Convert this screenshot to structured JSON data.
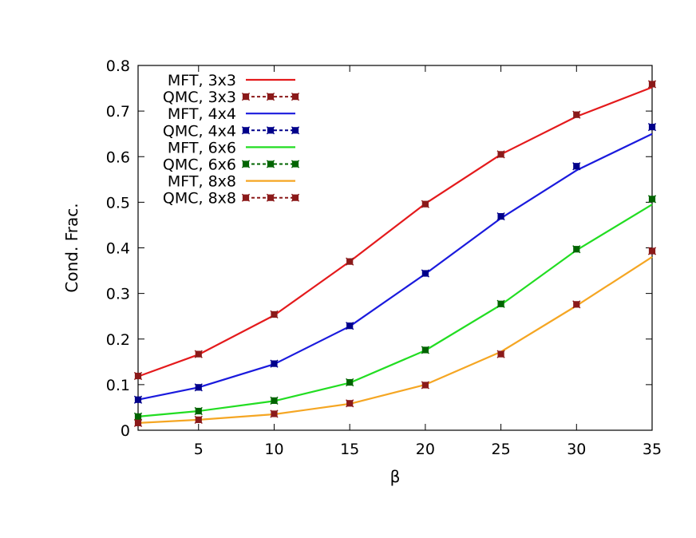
{
  "chart_data": {
    "type": "line",
    "title": "",
    "xlabel": "β",
    "ylabel": "Cond. Frac.",
    "xlim": [
      1,
      35
    ],
    "ylim": [
      0,
      0.8
    ],
    "xticks": [
      5,
      10,
      15,
      20,
      25,
      30,
      35
    ],
    "yticks": [
      0,
      0.1,
      0.2,
      0.3,
      0.4,
      0.5,
      0.6,
      0.7,
      0.8
    ],
    "ytick_labels": [
      "0",
      "0.1",
      "0.2",
      "0.3",
      "0.4",
      "0.5",
      "0.6",
      "0.7",
      "0.8"
    ],
    "grid": false,
    "legend_position": "top-left",
    "series": [
      {
        "name": "MFT, 3x3",
        "style": "line",
        "color": "#e41a1c",
        "x": [
          1,
          5,
          10,
          15,
          20,
          25,
          30,
          35
        ],
        "y": [
          0.118,
          0.166,
          0.252,
          0.37,
          0.497,
          0.605,
          0.688,
          0.752
        ]
      },
      {
        "name": "QMC, 3x3",
        "style": "dashed-markers",
        "color": "#8b1a1a",
        "x": [
          1,
          5,
          10,
          15,
          20,
          25,
          30,
          35
        ],
        "y": [
          0.119,
          0.167,
          0.254,
          0.37,
          0.496,
          0.605,
          0.692,
          0.759
        ]
      },
      {
        "name": "MFT, 4x4",
        "style": "line",
        "color": "#1a1add",
        "x": [
          1,
          5,
          10,
          15,
          20,
          25,
          30,
          35
        ],
        "y": [
          0.067,
          0.094,
          0.145,
          0.228,
          0.343,
          0.465,
          0.57,
          0.65
        ]
      },
      {
        "name": "QMC, 4x4",
        "style": "dashed-markers",
        "color": "#00008b",
        "x": [
          1,
          5,
          10,
          15,
          20,
          25,
          30,
          35
        ],
        "y": [
          0.067,
          0.094,
          0.146,
          0.229,
          0.344,
          0.469,
          0.579,
          0.665
        ]
      },
      {
        "name": "MFT, 6x6",
        "style": "line",
        "color": "#22dd22",
        "x": [
          1,
          5,
          10,
          15,
          20,
          25,
          30,
          35
        ],
        "y": [
          0.03,
          0.042,
          0.064,
          0.104,
          0.175,
          0.275,
          0.395,
          0.495
        ]
      },
      {
        "name": "QMC, 6x6",
        "style": "dashed-markers",
        "color": "#006400",
        "x": [
          1,
          5,
          10,
          15,
          20,
          25,
          30,
          35
        ],
        "y": [
          0.03,
          0.042,
          0.065,
          0.105,
          0.176,
          0.277,
          0.397,
          0.507
        ]
      },
      {
        "name": "MFT, 8x8",
        "style": "line",
        "color": "#f5a623",
        "x": [
          1,
          5,
          10,
          15,
          20,
          25,
          30,
          35
        ],
        "y": [
          0.016,
          0.023,
          0.035,
          0.058,
          0.1,
          0.172,
          0.273,
          0.38
        ]
      },
      {
        "name": "QMC, 8x8",
        "style": "dashed-markers",
        "color": "#8b1a1a",
        "x": [
          1,
          5,
          10,
          15,
          20,
          25,
          30,
          35
        ],
        "y": [
          0.016,
          0.023,
          0.036,
          0.059,
          0.099,
          0.167,
          0.276,
          0.393
        ]
      }
    ]
  }
}
